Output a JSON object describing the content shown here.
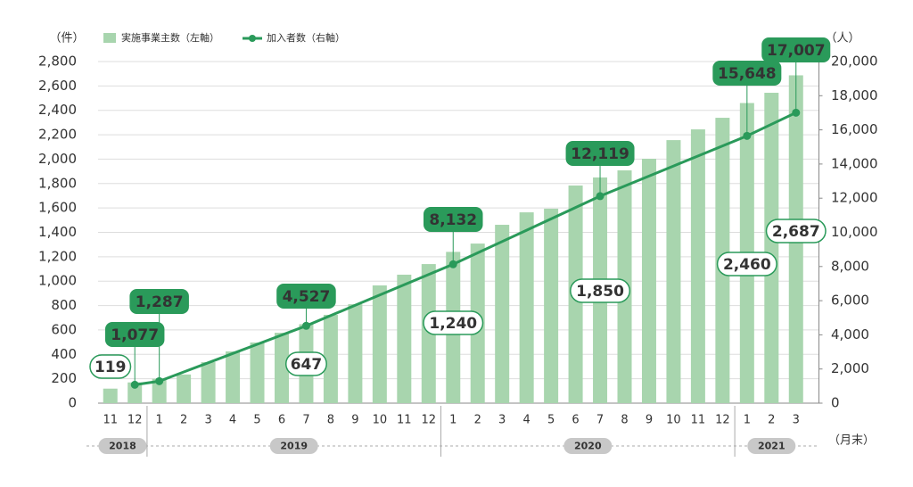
{
  "chart_data": {
    "type": "bar-line",
    "y_label": "（件）",
    "y2_label": "（人）",
    "x_unit": "（月末）",
    "categories": [
      "11",
      "12",
      "1",
      "2",
      "3",
      "4",
      "5",
      "6",
      "7",
      "8",
      "9",
      "10",
      "11",
      "12",
      "1",
      "2",
      "3",
      "4",
      "5",
      "6",
      "7",
      "8",
      "9",
      "10",
      "11",
      "12",
      "1",
      "2",
      "3"
    ],
    "x_groups": [
      {
        "label": "2018",
        "count": 2
      },
      {
        "label": "2019",
        "count": 12
      },
      {
        "label": "2020",
        "count": 12
      },
      {
        "label": "2021",
        "count": 3
      }
    ],
    "series": [
      {
        "name": "実施事業主数（左軸）",
        "type": "bar",
        "color": "#a8d5ae",
        "label_border": "#2a9a5a",
        "values": [
          119,
          170,
          200,
          235,
          336,
          424,
          497,
          577,
          647,
          724,
          811,
          965,
          1053,
          1140,
          1240,
          1308,
          1462,
          1564,
          1594,
          1784,
          1850,
          1908,
          2003,
          2156,
          2244,
          2339,
          2460,
          2544,
          2687
        ],
        "value_labels": [
          "119",
          null,
          null,
          null,
          null,
          null,
          null,
          null,
          "647",
          null,
          null,
          null,
          null,
          null,
          "1,240",
          null,
          null,
          null,
          null,
          null,
          "1,850",
          null,
          null,
          null,
          null,
          null,
          "2,460",
          null,
          "2,687"
        ]
      },
      {
        "name": "加入者数（右軸）",
        "type": "line",
        "axis": "y2",
        "color": "#2a9a5a",
        "values": [
          null,
          1077,
          1287,
          1827,
          2367,
          2907,
          3447,
          3987,
          4527,
          5128,
          5729,
          6330,
          6931,
          7531,
          8132,
          8797,
          9461,
          10126,
          10790,
          11455,
          12119,
          12707,
          13295,
          13884,
          14472,
          15060,
          15648,
          16328,
          17007
        ],
        "value_labels": [
          null,
          "1,077",
          "1,287",
          null,
          null,
          null,
          null,
          null,
          "4,527",
          null,
          null,
          null,
          null,
          null,
          "8,132",
          null,
          null,
          null,
          null,
          null,
          "12,119",
          null,
          null,
          null,
          null,
          null,
          "15,648",
          null,
          "17,007"
        ]
      }
    ],
    "ylim": [
      0,
      2800
    ],
    "yticks": [
      0,
      200,
      400,
      600,
      800,
      {
        "value": 1000,
        "label": "1,000"
      },
      {
        "value": 1200,
        "label": "1,200"
      },
      {
        "value": 1400,
        "label": "1,400"
      },
      {
        "value": 1600,
        "label": "1,600"
      },
      {
        "value": 1800,
        "label": "1,800"
      },
      {
        "value": 2000,
        "label": "2,000"
      },
      {
        "value": 2200,
        "label": "2,200"
      },
      {
        "value": 2400,
        "label": "2,400"
      },
      {
        "value": 2600,
        "label": "2,600"
      },
      {
        "value": 2800,
        "label": "2,800"
      }
    ],
    "y2lim": [
      0,
      20000
    ],
    "y2ticks": [
      0,
      {
        "value": 2000,
        "label": "2,000"
      },
      {
        "value": 4000,
        "label": "4,000"
      },
      {
        "value": 6000,
        "label": "6,000"
      },
      {
        "value": 8000,
        "label": "8,000"
      },
      {
        "value": 10000,
        "label": "10,000"
      },
      {
        "value": 12000,
        "label": "12,000"
      },
      {
        "value": 14000,
        "label": "14,000"
      },
      {
        "value": 16000,
        "label": "16,000"
      },
      {
        "value": 18000,
        "label": "18,000"
      },
      {
        "value": 20000,
        "label": "20,000"
      }
    ],
    "grid": true
  }
}
